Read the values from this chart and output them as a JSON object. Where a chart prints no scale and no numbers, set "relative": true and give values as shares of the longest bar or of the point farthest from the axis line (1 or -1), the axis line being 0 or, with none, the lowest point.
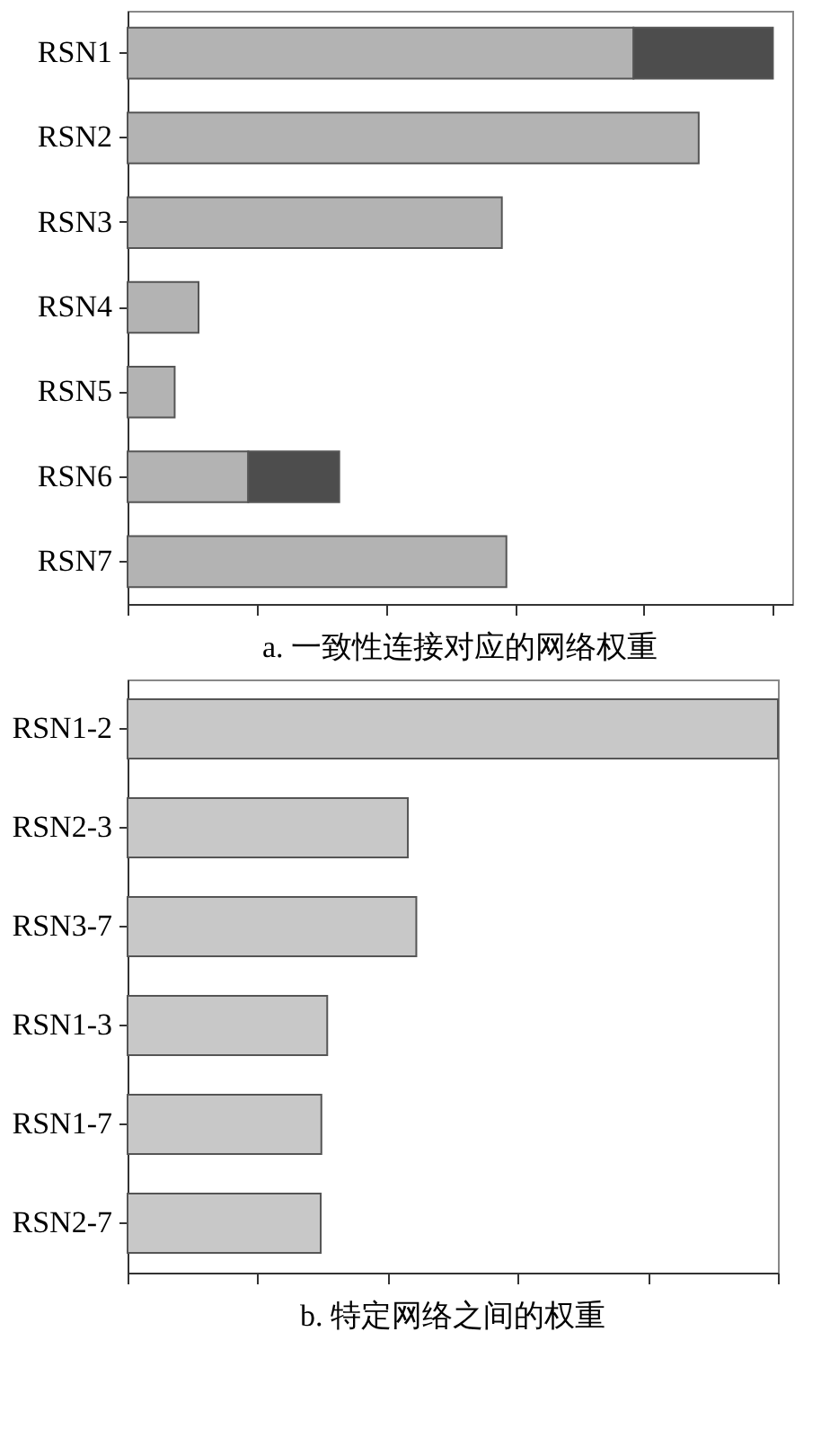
{
  "chart_data": [
    {
      "type": "bar",
      "orientation": "horizontal",
      "stacked": true,
      "relative": true,
      "title": "a. 一致性连接对应的网络权重",
      "categories": [
        "RSN1",
        "RSN2",
        "RSN3",
        "RSN4",
        "RSN5",
        "RSN6",
        "RSN7"
      ],
      "grid": false,
      "series": [
        {
          "color": "#b3b3b3",
          "values": [
            0.784,
            0.885,
            0.58,
            0.11,
            0.073,
            0.187,
            0.587
          ]
        },
        {
          "color": "#4d4d4d",
          "values": [
            0.216,
            null,
            null,
            null,
            null,
            0.141,
            null
          ]
        }
      ]
    },
    {
      "type": "bar",
      "orientation": "horizontal",
      "relative": true,
      "title": "b. 特定网络之间的权重",
      "categories": [
        "RSN1-2",
        "RSN2-3",
        "RSN3-7",
        "RSN1-3",
        "RSN1-7",
        "RSN2-7"
      ],
      "grid": false,
      "series": [
        {
          "color": "#c8c8c8",
          "values": [
            1,
            0.431,
            0.444,
            0.307,
            0.298,
            0.297
          ]
        }
      ]
    }
  ]
}
